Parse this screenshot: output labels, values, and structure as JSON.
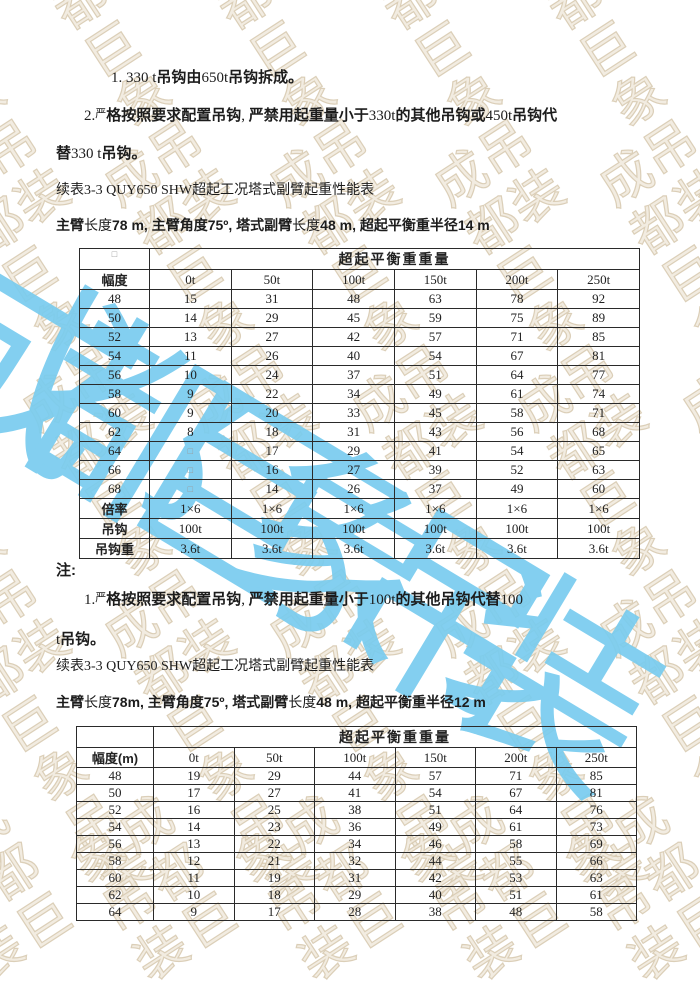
{
  "watermark": {
    "text": "成都巨象吊装",
    "blue_color": "#79CCEF",
    "tan_color": "#D6C8B0"
  },
  "paragraphs": {
    "note_330_1": [
      {
        "t": "1. 330 t",
        "c": "s"
      },
      {
        "t": "吊钩由",
        "c": "b"
      },
      {
        "t": "650t",
        "c": "s"
      },
      {
        "t": "吊钩拆成。",
        "c": "b"
      }
    ],
    "note_330_2": [
      {
        "t": "2.",
        "c": "s"
      },
      {
        "t": "严",
        "c": "sub"
      },
      {
        "t": "格按照要求配置吊钩",
        "c": "b"
      },
      {
        "t": ", ",
        "c": "s"
      },
      {
        "t": "严禁用起重量小于",
        "c": "b"
      },
      {
        "t": "330t",
        "c": "s"
      },
      {
        "t": "的其他吊钩或",
        "c": "b"
      },
      {
        "t": "450t",
        "c": "s"
      },
      {
        "t": "吊钩代",
        "c": "b"
      }
    ],
    "note_330_3": [
      {
        "t": "替",
        "c": "b"
      },
      {
        "t": "330 t",
        "c": "s"
      },
      {
        "t": "吊钩。",
        "c": "b"
      }
    ],
    "caption_1": [
      {
        "t": "续表3-3 QUY650 SHW超起工况塔式副臂起重性能表",
        "c": "s"
      }
    ],
    "spec_1": [
      {
        "t": "主臂",
        "c": "b"
      },
      {
        "t": "长度",
        "c": "s"
      },
      {
        "t": "78 m, 主臂角度75º, 塔式副臂",
        "c": "b"
      },
      {
        "t": "长度",
        "c": "s"
      },
      {
        "t": "48 m, 超起平衡重半径14 m",
        "c": "b"
      }
    ],
    "note_label": [
      {
        "t": "注:",
        "c": "b"
      }
    ],
    "note_100_1": [
      {
        "t": "1.",
        "c": "s"
      },
      {
        "t": "严",
        "c": "sub"
      },
      {
        "t": "格按照要求配置吊钩",
        "c": "b"
      },
      {
        "t": ", ",
        "c": "s"
      },
      {
        "t": "严禁用起重量小于",
        "c": "b"
      },
      {
        "t": "100t",
        "c": "s"
      },
      {
        "t": "的其他吊钩代替",
        "c": "b"
      },
      {
        "t": "100",
        "c": "s"
      }
    ],
    "note_100_2": [
      {
        "t": "t",
        "c": "s"
      },
      {
        "t": "吊钩。",
        "c": "b"
      }
    ],
    "caption_2": [
      {
        "t": "续表3-3 QUY650 SHW超起工况塔式副臂起重性能表",
        "c": "s"
      }
    ],
    "spec_2": [
      {
        "t": "主臂",
        "c": "b"
      },
      {
        "t": "长度",
        "c": "s"
      },
      {
        "t": "78m, 主臂角度75º, 塔式副臂",
        "c": "b"
      },
      {
        "t": "长度",
        "c": "s"
      },
      {
        "t": "48 m, 超起平衡重半径12 m",
        "c": "b"
      }
    ]
  },
  "tables": [
    {
      "title_row": "超起平衡重重量",
      "corner": "□",
      "col_headers": [
        "幅度",
        "0t",
        "50t",
        "100t",
        "150t",
        "200t",
        "250t"
      ],
      "rows": [
        [
          "48",
          "15",
          "31",
          "48",
          "63",
          "78",
          "92"
        ],
        [
          "50",
          "14",
          "29",
          "45",
          "59",
          "75",
          "89"
        ],
        [
          "52",
          "13",
          "27",
          "42",
          "57",
          "71",
          "85"
        ],
        [
          "54",
          "11",
          "26",
          "40",
          "54",
          "67",
          "81"
        ],
        [
          "56",
          "10",
          "24",
          "37",
          "51",
          "64",
          "77"
        ],
        [
          "58",
          "9",
          "22",
          "34",
          "49",
          "61",
          "74"
        ],
        [
          "60",
          "9",
          "20",
          "33",
          "45",
          "58",
          "71"
        ],
        [
          "62",
          "8",
          "18",
          "31",
          "43",
          "56",
          "68"
        ],
        [
          "64",
          "□",
          "17",
          "29",
          "41",
          "54",
          "65"
        ],
        [
          "66",
          "□",
          "16",
          "27",
          "39",
          "52",
          "63"
        ],
        [
          "68",
          "□",
          "14",
          "26",
          "37",
          "49",
          "60"
        ]
      ],
      "footer_rows": [
        [
          "倍率",
          "1×6",
          "1×6",
          "1×6",
          "1×6",
          "1×6",
          "1×6"
        ],
        [
          "吊钩",
          "100t",
          "100t",
          "100t",
          "100t",
          "100t",
          "100t"
        ],
        [
          "吊钩重",
          "3.6t",
          "3.6t",
          "3.6t",
          "3.6t",
          "3.6t",
          "3.6t"
        ]
      ]
    },
    {
      "title_row": "超起平衡重重量",
      "corner": "",
      "col_headers": [
        "幅度(m)",
        "0t",
        "50t",
        "100t",
        "150t",
        "200t",
        "250t"
      ],
      "rows": [
        [
          "48",
          "19",
          "29",
          "44",
          "57",
          "71",
          "85"
        ],
        [
          "50",
          "17",
          "27",
          "41",
          "54",
          "67",
          "81"
        ],
        [
          "52",
          "16",
          "25",
          "38",
          "51",
          "64",
          "76"
        ],
        [
          "54",
          "14",
          "23",
          "36",
          "49",
          "61",
          "73"
        ],
        [
          "56",
          "13",
          "22",
          "34",
          "46",
          "58",
          "69"
        ],
        [
          "58",
          "12",
          "21",
          "32",
          "44",
          "55",
          "66"
        ],
        [
          "60",
          "11",
          "19",
          "31",
          "42",
          "53",
          "63"
        ],
        [
          "62",
          "10",
          "18",
          "29",
          "40",
          "51",
          "61"
        ],
        [
          "64",
          "9",
          "17",
          "28",
          "38",
          "48",
          "58"
        ]
      ],
      "footer_rows": []
    }
  ]
}
